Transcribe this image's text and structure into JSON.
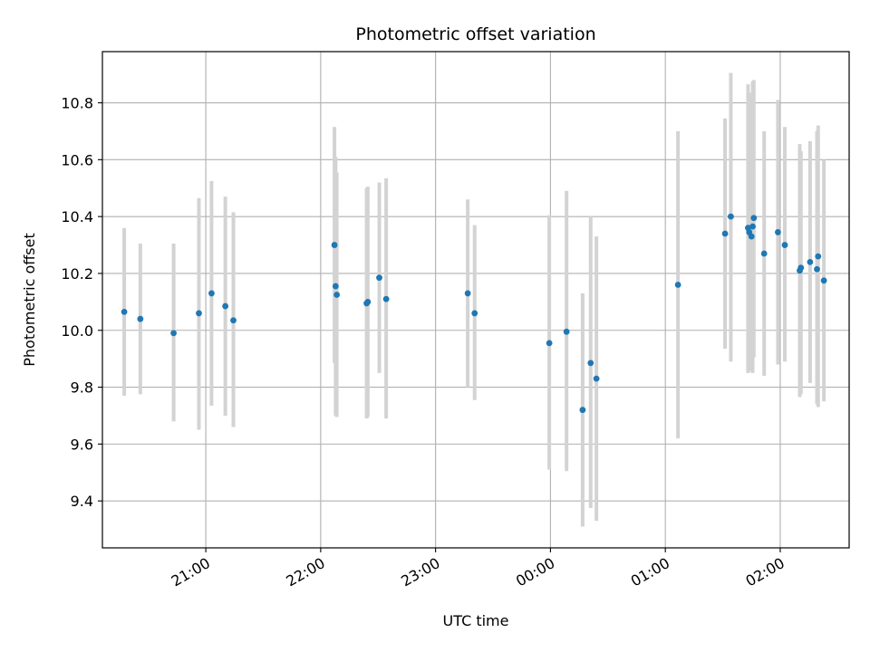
{
  "chart_data": {
    "type": "scatter",
    "title": "Photometric offset variation",
    "xlabel": "UTC time",
    "ylabel": "Photometric offset",
    "x_unit": "hours (UTC, continuous across midnight)",
    "xlim": [
      20.1,
      26.6
    ],
    "ylim": [
      9.235,
      10.98
    ],
    "grid": true,
    "x_ticks": [
      {
        "value": 21,
        "label": "21:00"
      },
      {
        "value": 22,
        "label": "22:00"
      },
      {
        "value": 23,
        "label": "23:00"
      },
      {
        "value": 24,
        "label": "00:00"
      },
      {
        "value": 25,
        "label": "01:00"
      },
      {
        "value": 26,
        "label": "02:00"
      }
    ],
    "y_ticks": [
      {
        "value": 9.4,
        "label": "9.4"
      },
      {
        "value": 9.6,
        "label": "9.6"
      },
      {
        "value": 9.8,
        "label": "9.8"
      },
      {
        "value": 10.0,
        "label": "10.0"
      },
      {
        "value": 10.2,
        "label": "10.2"
      },
      {
        "value": 10.4,
        "label": "10.4"
      },
      {
        "value": 10.6,
        "label": "10.6"
      },
      {
        "value": 10.8,
        "label": "10.8"
      }
    ],
    "colors": {
      "point": "#1f77b4",
      "errorbar": "#d3d3d3",
      "grid": "#b0b0b0"
    },
    "series": [
      {
        "points": [
          {
            "x": 20.29,
            "y": 10.065,
            "lo": 9.77,
            "hi": 10.36
          },
          {
            "x": 20.43,
            "y": 10.04,
            "lo": 9.775,
            "hi": 10.305
          },
          {
            "x": 20.72,
            "y": 9.99,
            "lo": 9.68,
            "hi": 10.305
          },
          {
            "x": 20.94,
            "y": 10.06,
            "lo": 9.65,
            "hi": 10.465
          },
          {
            "x": 21.05,
            "y": 10.13,
            "lo": 9.735,
            "hi": 10.525
          },
          {
            "x": 21.17,
            "y": 10.085,
            "lo": 9.7,
            "hi": 10.47
          },
          {
            "x": 21.24,
            "y": 10.035,
            "lo": 9.66,
            "hi": 10.415
          },
          {
            "x": 22.12,
            "y": 10.3,
            "lo": 9.885,
            "hi": 10.715
          },
          {
            "x": 22.13,
            "y": 10.155,
            "lo": 9.7,
            "hi": 10.61
          },
          {
            "x": 22.14,
            "y": 10.125,
            "lo": 9.695,
            "hi": 10.555
          },
          {
            "x": 22.4,
            "y": 10.095,
            "lo": 9.69,
            "hi": 10.5
          },
          {
            "x": 22.41,
            "y": 10.1,
            "lo": 9.695,
            "hi": 10.505
          },
          {
            "x": 22.51,
            "y": 10.185,
            "lo": 9.85,
            "hi": 10.52
          },
          {
            "x": 22.57,
            "y": 10.11,
            "lo": 9.69,
            "hi": 10.535
          },
          {
            "x": 23.28,
            "y": 10.13,
            "lo": 9.8,
            "hi": 10.46
          },
          {
            "x": 23.34,
            "y": 10.06,
            "lo": 9.755,
            "hi": 10.37
          },
          {
            "x": 23.99,
            "y": 9.955,
            "lo": 9.51,
            "hi": 10.405
          },
          {
            "x": 24.14,
            "y": 9.995,
            "lo": 9.505,
            "hi": 10.49
          },
          {
            "x": 24.28,
            "y": 9.72,
            "lo": 9.31,
            "hi": 10.13
          },
          {
            "x": 24.35,
            "y": 9.885,
            "lo": 9.375,
            "hi": 10.4
          },
          {
            "x": 24.4,
            "y": 9.83,
            "lo": 9.33,
            "hi": 10.33
          },
          {
            "x": 25.11,
            "y": 10.16,
            "lo": 9.62,
            "hi": 10.7
          },
          {
            "x": 25.52,
            "y": 10.34,
            "lo": 9.935,
            "hi": 10.745
          },
          {
            "x": 25.57,
            "y": 10.4,
            "lo": 9.89,
            "hi": 10.905
          },
          {
            "x": 25.72,
            "y": 10.36,
            "lo": 9.85,
            "hi": 10.865
          },
          {
            "x": 25.73,
            "y": 10.345,
            "lo": 9.855,
            "hi": 10.835
          },
          {
            "x": 25.75,
            "y": 10.33,
            "lo": 9.86,
            "hi": 10.8
          },
          {
            "x": 25.76,
            "y": 10.365,
            "lo": 9.85,
            "hi": 10.875
          },
          {
            "x": 25.77,
            "y": 10.395,
            "lo": 9.905,
            "hi": 10.88
          },
          {
            "x": 25.86,
            "y": 10.27,
            "lo": 9.84,
            "hi": 10.7
          },
          {
            "x": 25.98,
            "y": 10.345,
            "lo": 9.88,
            "hi": 10.81
          },
          {
            "x": 26.04,
            "y": 10.3,
            "lo": 9.89,
            "hi": 10.715
          },
          {
            "x": 26.17,
            "y": 10.21,
            "lo": 9.765,
            "hi": 10.655
          },
          {
            "x": 26.18,
            "y": 10.22,
            "lo": 9.775,
            "hi": 10.63
          },
          {
            "x": 26.26,
            "y": 10.24,
            "lo": 9.815,
            "hi": 10.665
          },
          {
            "x": 26.32,
            "y": 10.215,
            "lo": 9.74,
            "hi": 10.7
          },
          {
            "x": 26.33,
            "y": 10.26,
            "lo": 9.73,
            "hi": 10.72
          },
          {
            "x": 26.38,
            "y": 10.175,
            "lo": 9.75,
            "hi": 10.6
          }
        ]
      }
    ]
  }
}
